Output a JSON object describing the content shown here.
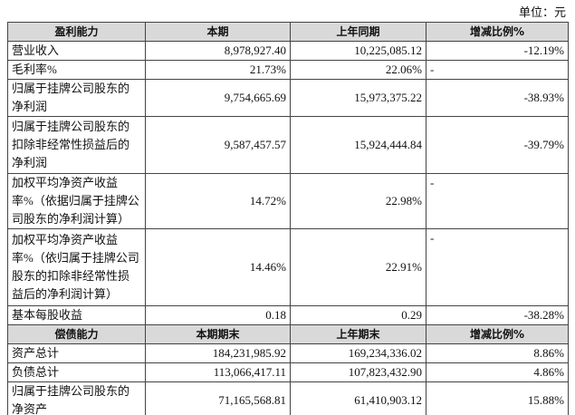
{
  "unit": "单位：元",
  "sections": [
    {
      "header": [
        "盈利能力",
        "本期",
        "上年同期",
        "增减比例%"
      ],
      "rows": [
        {
          "label": [
            "营业收入"
          ],
          "current": "8,978,927.40",
          "previous": "10,225,085.12",
          "change": "-12.19%"
        },
        {
          "label": [
            "毛利率%"
          ],
          "current": "21.73%",
          "previous": "22.06%",
          "change": "-"
        },
        {
          "label": [
            "归属于挂牌公司股东的",
            "净利润"
          ],
          "current": "9,754,665.69",
          "previous": "15,973,375.22",
          "change": "-38.93%"
        },
        {
          "label": [
            "归属于挂牌公司股东的",
            "扣除非经常性损益后的",
            "净利润"
          ],
          "current": "9,587,457.57",
          "previous": "15,924,444.84",
          "change": "-39.79%"
        },
        {
          "label": [
            "加权平均净资产收益",
            "率%（依据归属于挂牌公",
            "司股东的净利润计算）"
          ],
          "current": "14.72%",
          "previous": "22.98%",
          "change": "-"
        },
        {
          "label": [
            "加权平均净资产收益",
            "率%（依归属于挂牌公司",
            "股东的扣除非经常性损",
            "益后的净利润计算）"
          ],
          "current": "14.46%",
          "previous": "22.91%",
          "change": "-"
        },
        {
          "label": [
            "基本每股收益"
          ],
          "current": "0.18",
          "previous": "0.29",
          "change": "-38.28%"
        }
      ]
    },
    {
      "header": [
        "偿债能力",
        "本期期末",
        "上年期末",
        "增减比例%"
      ],
      "rows": [
        {
          "label": [
            "资产总计"
          ],
          "current": "184,231,985.92",
          "previous": "169,234,336.02",
          "change": "8.86%"
        },
        {
          "label": [
            "负债总计"
          ],
          "current": "113,066,417.11",
          "previous": "107,823,432.90",
          "change": "4.86%"
        },
        {
          "label": [
            "归属于挂牌公司股东的",
            "净资产"
          ],
          "current": "71,165,568.81",
          "previous": "61,410,903.12",
          "change": "15.88%"
        }
      ]
    }
  ]
}
